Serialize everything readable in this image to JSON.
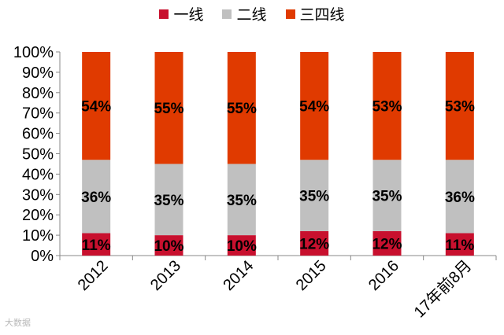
{
  "chart_data": {
    "type": "bar",
    "stacked": true,
    "percent": true,
    "title": "",
    "xlabel": "",
    "ylabel": "",
    "ylim": [
      0,
      100
    ],
    "yticks": [
      "0%",
      "10%",
      "20%",
      "30%",
      "40%",
      "50%",
      "60%",
      "70%",
      "80%",
      "90%",
      "100%"
    ],
    "categories": [
      "2012",
      "2013",
      "2014",
      "2015",
      "2016",
      "17年前8月"
    ],
    "series": [
      {
        "name": "一线",
        "color": "#c8102e",
        "values": [
          11,
          10,
          10,
          12,
          12,
          11
        ],
        "labels": [
          "11%",
          "10%",
          "10%",
          "12%",
          "12%",
          "11%"
        ]
      },
      {
        "name": "二线",
        "color": "#c0c0c0",
        "values": [
          36,
          35,
          35,
          35,
          35,
          36
        ],
        "labels": [
          "36%",
          "35%",
          "35%",
          "35%",
          "35%",
          "36%"
        ]
      },
      {
        "name": "三四线",
        "color": "#e03a00",
        "values": [
          54,
          55,
          55,
          54,
          53,
          53
        ],
        "labels": [
          "54%",
          "55%",
          "55%",
          "54%",
          "53%",
          "53%"
        ]
      }
    ],
    "legend": "top",
    "grid": false
  },
  "watermark": "大数据"
}
